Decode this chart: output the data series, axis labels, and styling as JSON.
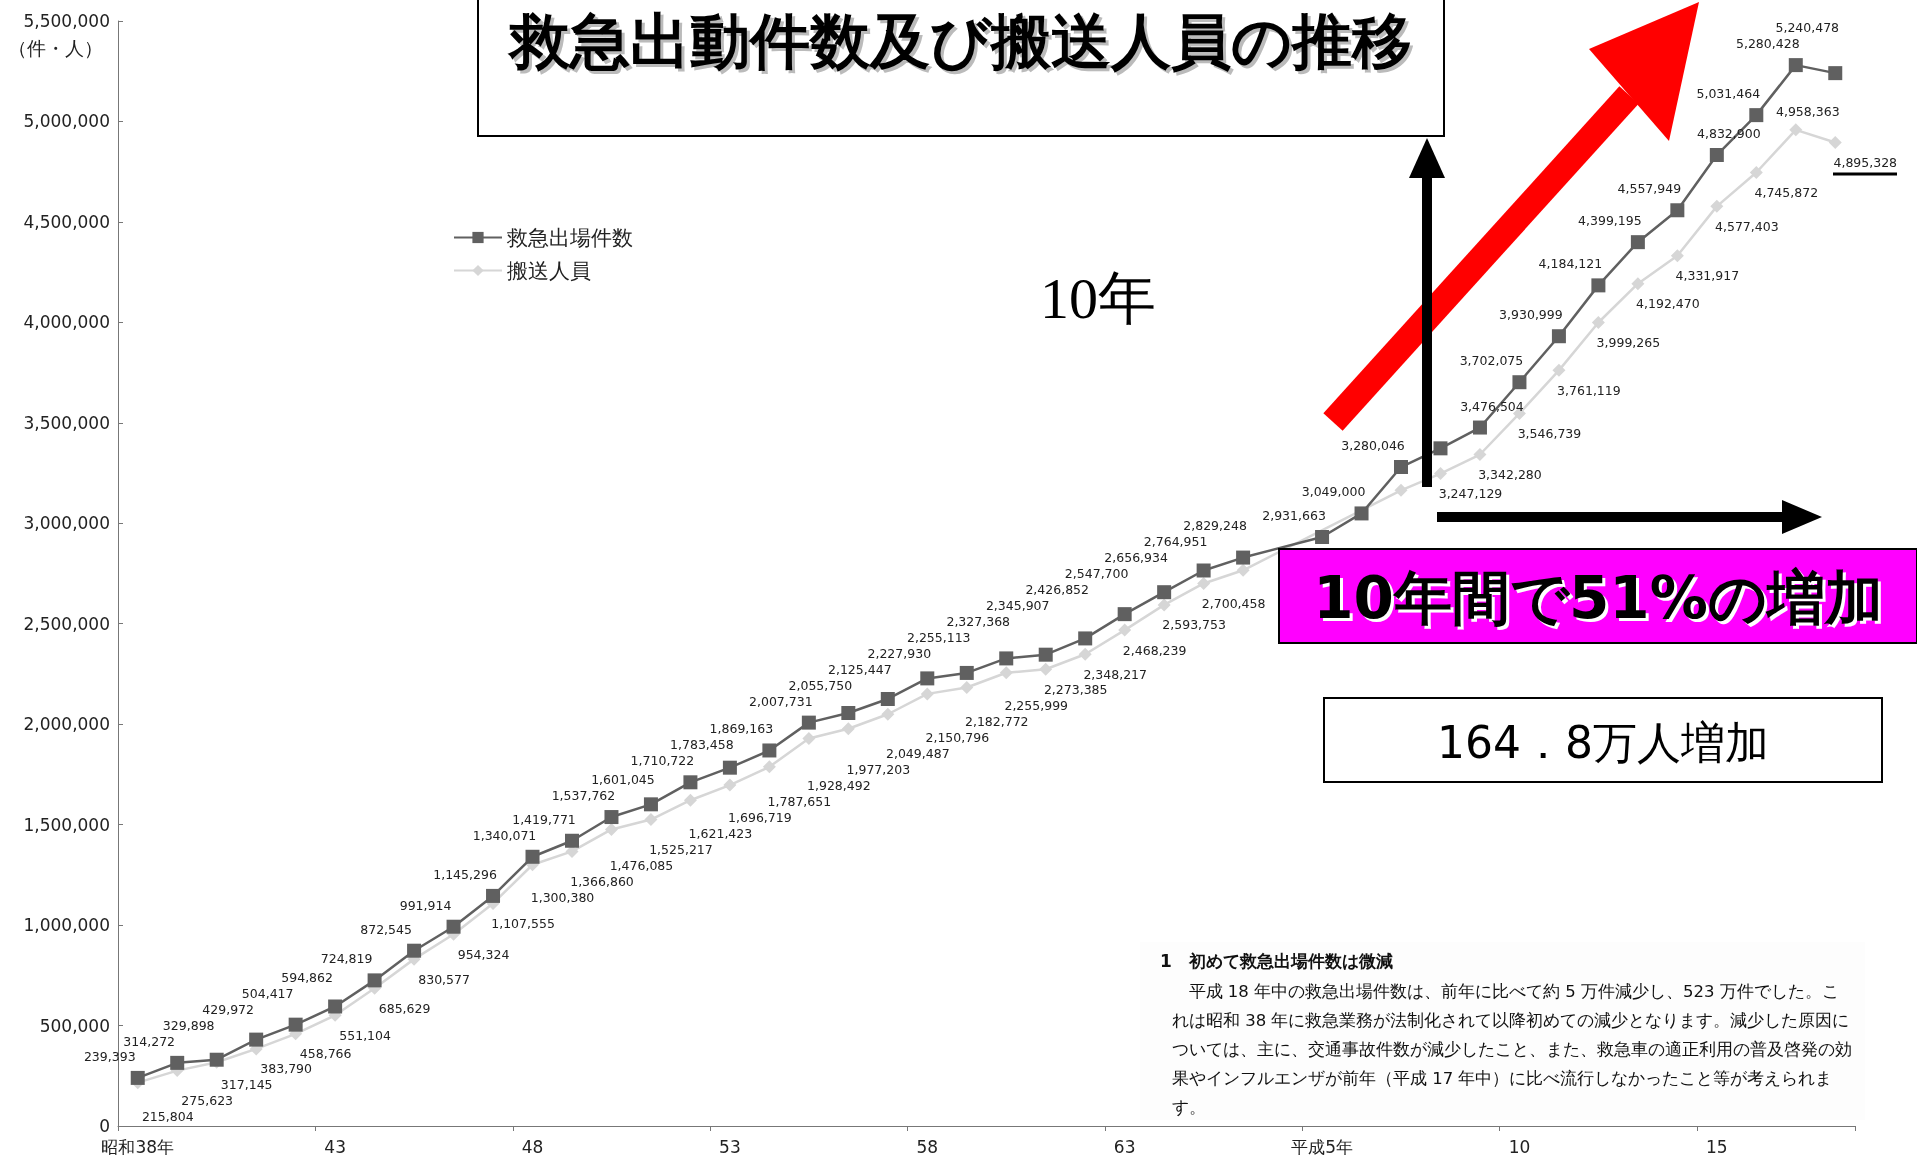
{
  "chart_data": {
    "type": "line",
    "title": "救急出動件数及び搬送人員の推移",
    "ylabel": "（件・人）",
    "categories": [
      "昭和38年",
      null,
      null,
      null,
      null,
      "43",
      null,
      null,
      null,
      null,
      "48",
      null,
      null,
      null,
      null,
      "53",
      null,
      null,
      null,
      null,
      "58",
      null,
      null,
      null,
      null,
      "63",
      null,
      null,
      null,
      null,
      "平成5年",
      null,
      null,
      null,
      null,
      "10",
      null,
      null,
      null,
      null,
      "15",
      null,
      null,
      null
    ],
    "series": [
      {
        "name": "救急出場件数",
        "color": "#606060",
        "marker": "square",
        "values": [
          239393,
          314272,
          329898,
          429972,
          504417,
          594862,
          724819,
          872545,
          991914,
          1145296,
          1340071,
          1419771,
          1537762,
          1601045,
          1710722,
          1783458,
          1869163,
          2007731,
          2055750,
          2125447,
          2227930,
          2255113,
          2327368,
          2345907,
          2426852,
          2547700,
          2656934,
          2764951,
          2829248,
          null,
          2931663,
          3049000,
          3280046,
          3373000,
          3476504,
          3702075,
          3930999,
          4184121,
          4399195,
          4557949,
          4832900,
          5031464,
          5280428,
          5240478
        ],
        "value_labels": [
          "239,393",
          "314,272",
          "329,898",
          "429,972",
          "504,417",
          "594,862",
          "724,819",
          "872,545",
          "991,914",
          "1,145,296",
          "1,340,071",
          "1,419,771",
          "1,537,762",
          "1,601,045",
          "1,710,722",
          "1,783,458",
          "1,869,163",
          "2,007,731",
          "2,055,750",
          "2,125,447",
          "2,227,930",
          "2,255,113",
          "2,327,368",
          "2,345,907",
          "2,426,852",
          "2,547,700",
          "2,656,934",
          "2,764,951",
          "2,829,248",
          null,
          "2,931,663",
          "3,049,000",
          "3,280,046",
          null,
          "3,476,504",
          "3,702,075",
          "3,930,999",
          "4,184,121",
          "4,399,195",
          "4,557,949",
          "4,832,900",
          "5,031,464",
          "5,280,428",
          "5,240,478"
        ]
      },
      {
        "name": "搬送人員",
        "color": "#d6d6d6",
        "marker": "diamond",
        "values": [
          215804,
          275623,
          317145,
          383790,
          458766,
          551104,
          685629,
          830577,
          954324,
          1107555,
          1300380,
          1366860,
          1476085,
          1525217,
          1621423,
          1696719,
          1787651,
          1928492,
          1977203,
          2049487,
          2150796,
          2182772,
          2255999,
          2273385,
          2348217,
          2468239,
          2593753,
          2700458,
          2766000,
          null,
          null,
          null,
          3164000,
          3247129,
          3342280,
          3546739,
          3761119,
          3999265,
          4192470,
          4331917,
          4577403,
          4745872,
          4958363,
          4895328
        ],
        "value_labels": [
          "215,804",
          "275,623",
          "317,145",
          "383,790",
          "458,766",
          "551,104",
          "685,629",
          "830,577",
          "954,324",
          "1,107,555",
          "1,300,380",
          "1,366,860",
          "1,476,085",
          "1,525,217",
          "1,621,423",
          "1,696,719",
          "1,787,651",
          "1,928,492",
          "1,977,203",
          "2,049,487",
          "2,150,796",
          "2,182,772",
          "2,255,999",
          "2,273,385",
          "2,348,217",
          "2,468,239",
          "2,593,753",
          "2,700,458",
          null,
          null,
          null,
          null,
          null,
          "3,247,129",
          "3,342,280",
          "3,546,739",
          "3,761,119",
          "3,999,265",
          "4,192,470",
          "4,331,917",
          "4,577,403",
          "4,745,872",
          "4,958,363",
          "4,895,328"
        ]
      }
    ],
    "ylim": [
      0,
      5500000
    ],
    "yticks": [
      0,
      {
        "value": 500000,
        "label": "500,000"
      },
      {
        "value": 1000000,
        "label": "1,000,000"
      },
      {
        "value": 1500000,
        "label": "1,500,000"
      },
      {
        "value": 2000000,
        "label": "2,000,000"
      },
      {
        "value": 2500000,
        "label": "2,500,000"
      },
      {
        "value": 3000000,
        "label": "3,000,000"
      },
      {
        "value": 3500000,
        "label": "3,500,000"
      },
      {
        "value": 4000000,
        "label": "4,000,000"
      },
      {
        "value": 4500000,
        "label": "4,500,000"
      },
      {
        "value": 5000000,
        "label": "5,000,000"
      },
      {
        "value": 5500000,
        "label": "5,500,000"
      }
    ],
    "legend": "top left",
    "annotations": [
      "10年",
      "10年間で51%の増加",
      "164．8万人増加",
      "1　初めて救急出場件数は微減",
      "平成 18 年中の救急出場件数は、前年に比べて約 5 万件減少し、523 万件でした。これは昭和 38 年に救急業務が法制化されて以降初めての減少となります。減少した原因については、主に、交通事故件数が減少したこと、また、救急車の適正利用の普及啓発の効果やインフルエンザが前年（平成 17 年中）に比べ流行しなかったこと等が考えられます。"
    ]
  }
}
